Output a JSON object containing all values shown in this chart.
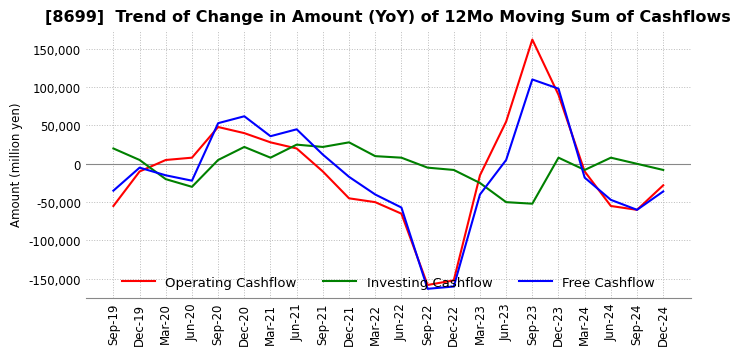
{
  "title": "[8699]  Trend of Change in Amount (YoY) of 12Mo Moving Sum of Cashflows",
  "ylabel": "Amount (million yen)",
  "x_labels": [
    "Sep-19",
    "Dec-19",
    "Mar-20",
    "Jun-20",
    "Sep-20",
    "Dec-20",
    "Mar-21",
    "Jun-21",
    "Sep-21",
    "Dec-21",
    "Mar-22",
    "Jun-22",
    "Sep-22",
    "Dec-22",
    "Mar-23",
    "Jun-23",
    "Sep-23",
    "Dec-23",
    "Mar-24",
    "Jun-24",
    "Sep-24",
    "Dec-24"
  ],
  "operating": [
    -55000,
    -10000,
    5000,
    8000,
    48000,
    40000,
    28000,
    20000,
    -10000,
    -45000,
    -50000,
    -65000,
    -158000,
    -152000,
    -15000,
    55000,
    162000,
    90000,
    -10000,
    -55000,
    -60000,
    -28000
  ],
  "investing": [
    20000,
    5000,
    -20000,
    -30000,
    5000,
    22000,
    8000,
    25000,
    22000,
    28000,
    10000,
    8000,
    -5000,
    -8000,
    -25000,
    -50000,
    -52000,
    8000,
    -8000,
    8000,
    0,
    -8000
  ],
  "free": [
    -35000,
    -5000,
    -15000,
    -22000,
    53000,
    62000,
    36000,
    45000,
    12000,
    -17000,
    -40000,
    -57000,
    -163000,
    -160000,
    -40000,
    5000,
    110000,
    98000,
    -18000,
    -47000,
    -60000,
    -36000
  ],
  "ylim": [
    -175000,
    175000
  ],
  "yticks": [
    -150000,
    -100000,
    -50000,
    0,
    50000,
    100000,
    150000
  ],
  "operating_color": "#ff0000",
  "investing_color": "#008000",
  "free_color": "#0000ff",
  "background_color": "#ffffff",
  "grid_color": "#bbbbbb",
  "title_fontsize": 11.5,
  "axis_fontsize": 8.5,
  "legend_fontsize": 9.5
}
